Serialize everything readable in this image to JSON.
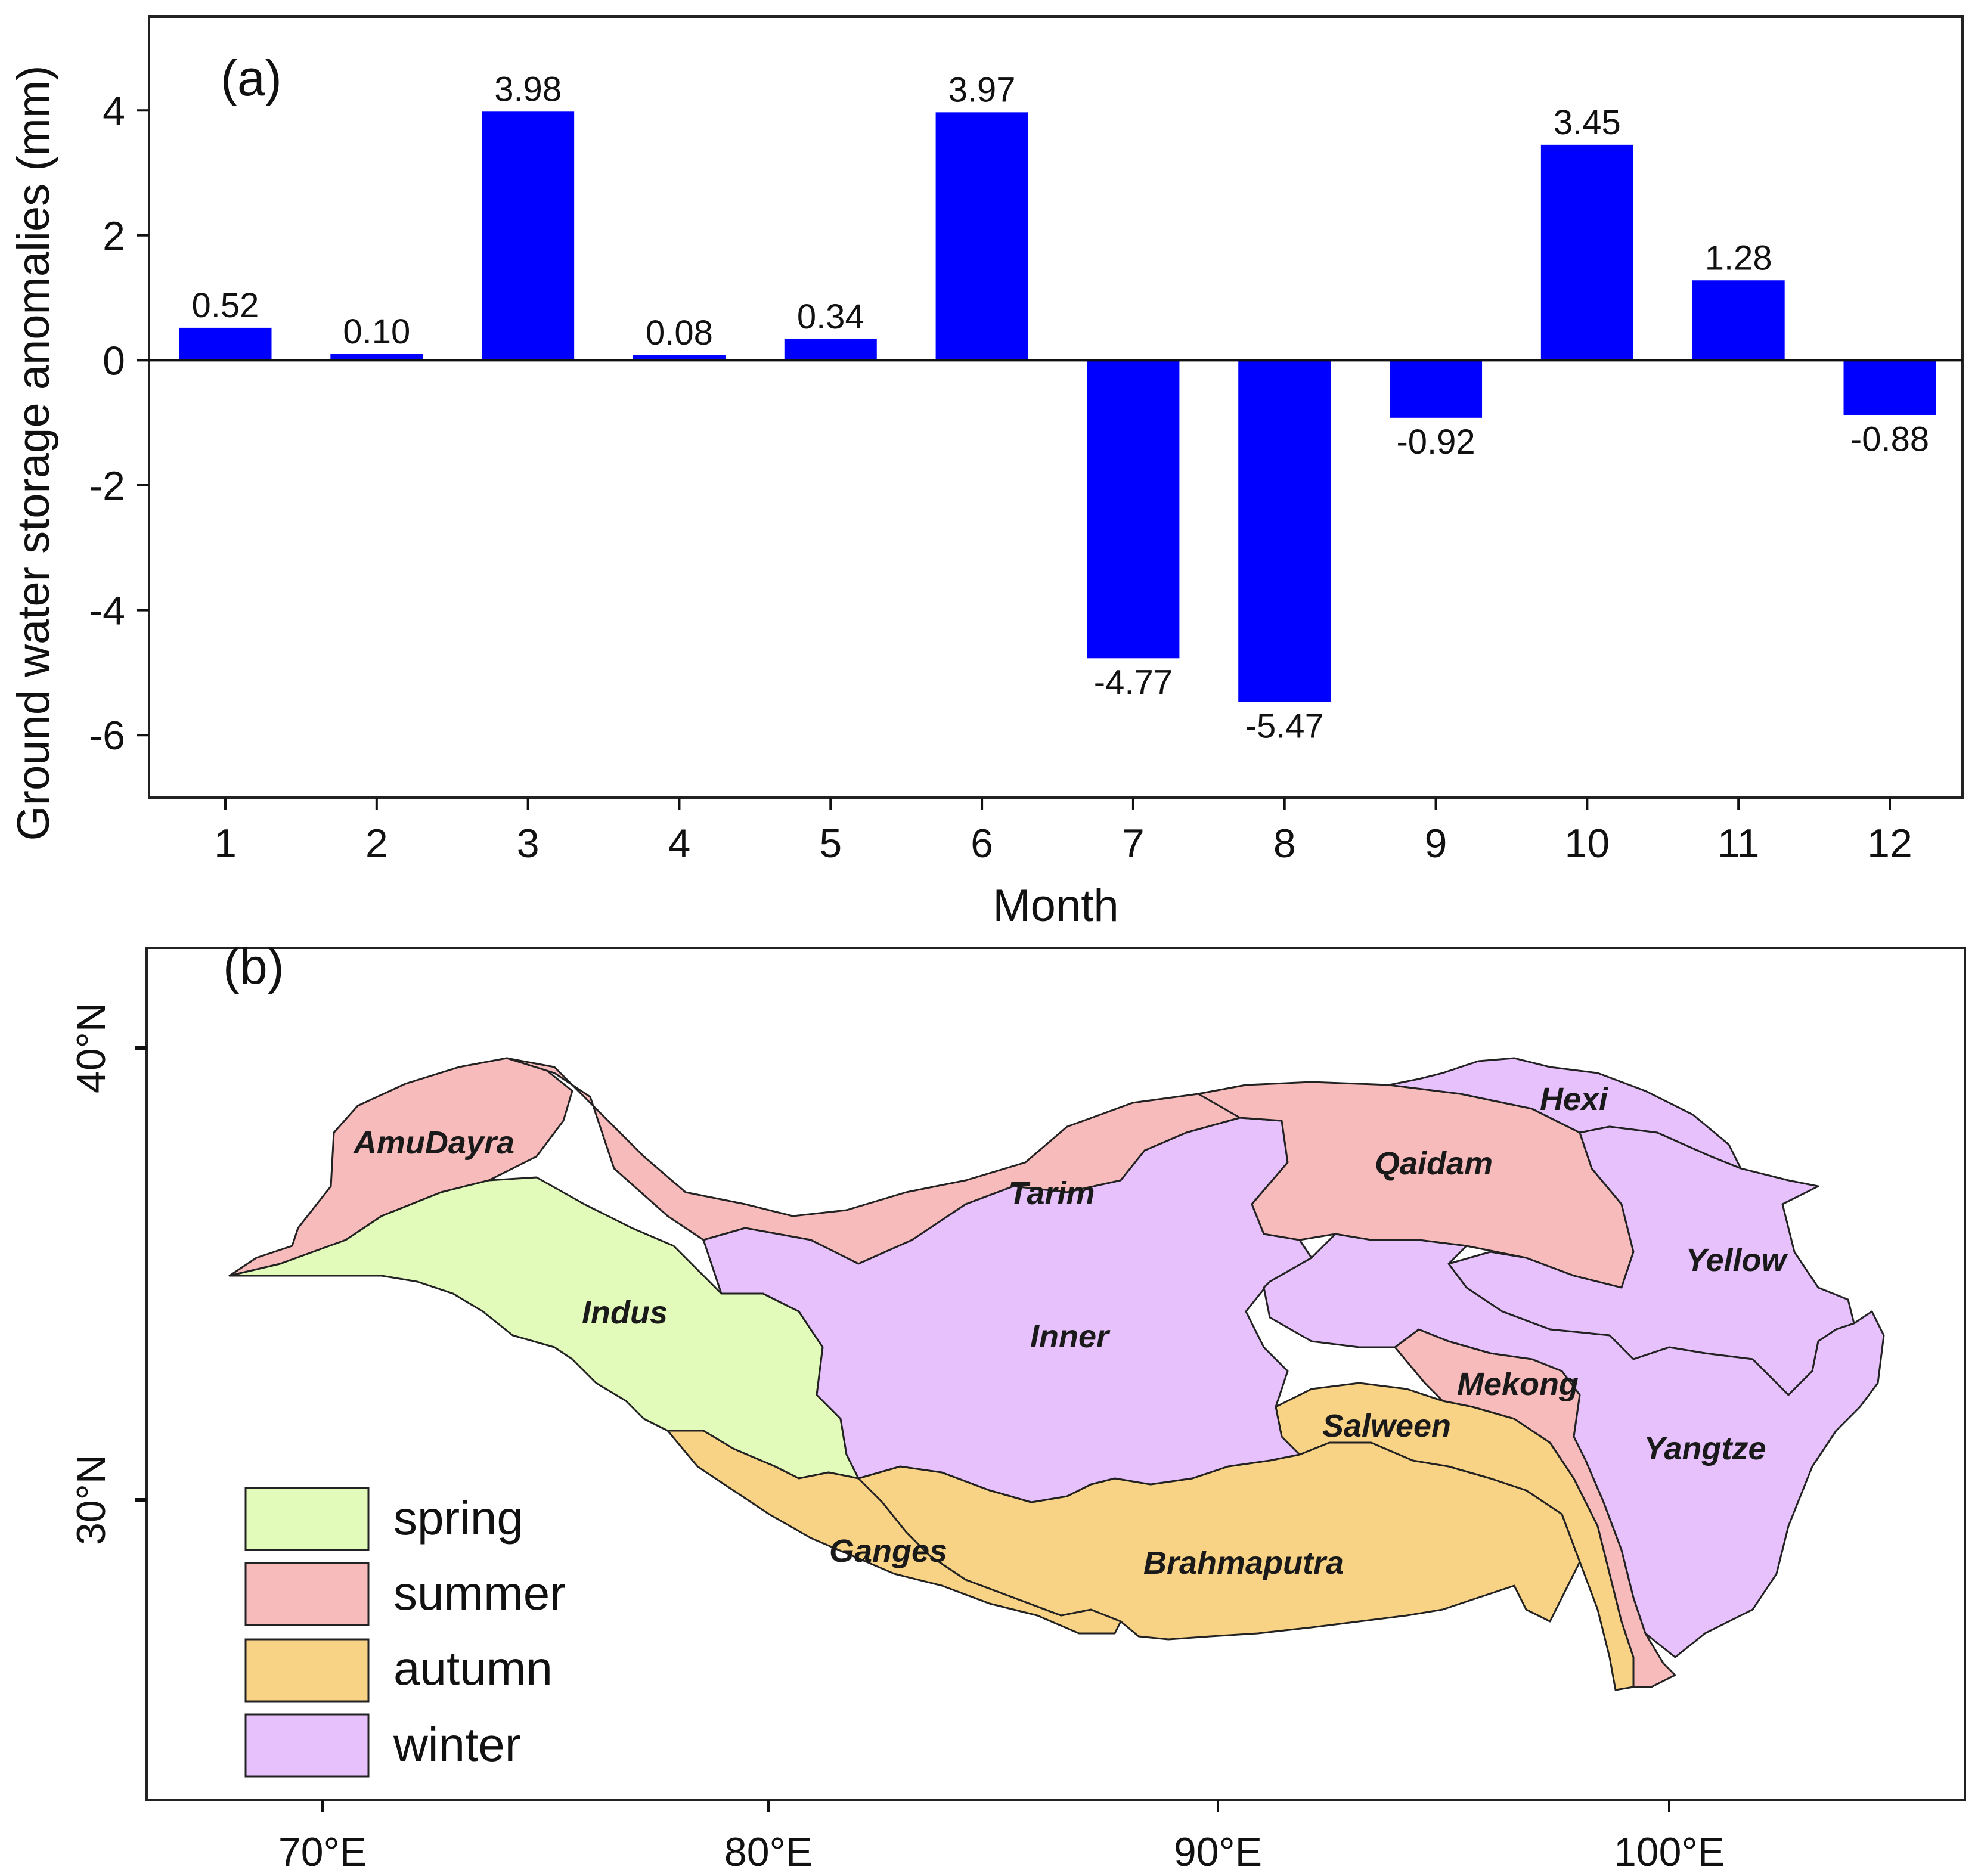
{
  "chart_data": [
    {
      "type": "bar",
      "panel_label": "(a)",
      "title": "",
      "xlabel": "Month",
      "ylabel": "Ground water storage anomalies  (mm)",
      "categories": [
        "1",
        "2",
        "3",
        "4",
        "5",
        "6",
        "7",
        "8",
        "9",
        "10",
        "11",
        "12"
      ],
      "values": [
        0.52,
        0.1,
        3.98,
        0.08,
        0.34,
        3.97,
        -4.77,
        -5.47,
        -0.92,
        3.45,
        1.28,
        -0.88
      ],
      "value_labels": [
        "0.52",
        "0.10",
        "3.98",
        "0.08",
        "0.34",
        "3.97",
        "-4.77",
        "-5.47",
        "-0.92",
        "3.45",
        "1.28",
        "-0.88"
      ],
      "yticks": [
        4,
        2,
        0,
        -2,
        -4,
        -6
      ],
      "ytick_labels": [
        "4",
        "2",
        "0",
        "-2",
        "-4",
        "-6"
      ],
      "ylim": [
        -7,
        5.5
      ],
      "bar_color": "#0000ff",
      "zero_line": true,
      "grid": false
    },
    {
      "type": "map",
      "panel_label": "(b)",
      "x_ticks": [
        "70°E",
        "80°E",
        "90°E",
        "100°E"
      ],
      "y_ticks": [
        "40°N",
        "30°N"
      ],
      "legend": [
        {
          "label": "spring",
          "color": "#e2fbba"
        },
        {
          "label": "summer",
          "color": "#f8bbbb"
        },
        {
          "label": "autumn",
          "color": "#f9d385"
        },
        {
          "label": "winter",
          "color": "#e6c1fb"
        }
      ],
      "basins": [
        {
          "name": "AmuDayra",
          "season": "summer"
        },
        {
          "name": "Tarim",
          "season": "summer"
        },
        {
          "name": "Qaidam",
          "season": "summer"
        },
        {
          "name": "Hexi",
          "season": "winter"
        },
        {
          "name": "Indus",
          "season": "spring"
        },
        {
          "name": "Inner",
          "season": "winter"
        },
        {
          "name": "Yellow",
          "season": "winter"
        },
        {
          "name": "Mekong",
          "season": "summer"
        },
        {
          "name": "Salween",
          "season": "autumn"
        },
        {
          "name": "Yangtze",
          "season": "winter"
        },
        {
          "name": "Ganges",
          "season": "autumn"
        },
        {
          "name": "Brahmaputra",
          "season": "autumn"
        }
      ]
    }
  ]
}
